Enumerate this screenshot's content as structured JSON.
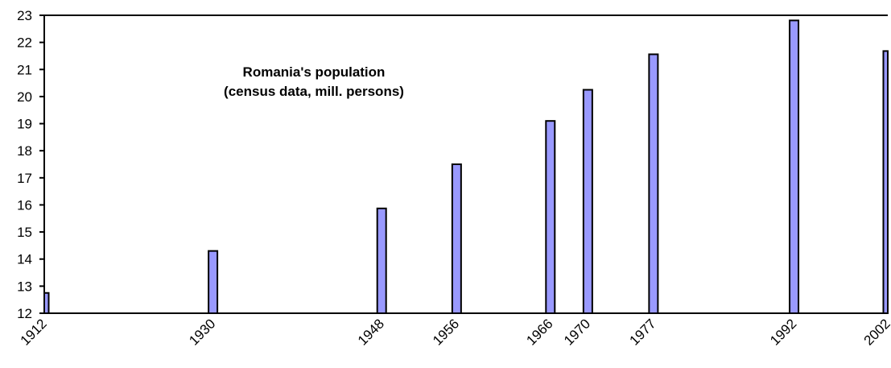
{
  "chart_data": {
    "type": "bar",
    "title": "Romania's population",
    "subtitle": "(census data, mill. persons)",
    "xlabel": "",
    "ylabel": "",
    "categories": [
      "1912",
      "1930",
      "1948",
      "1956",
      "1966",
      "1970",
      "1977",
      "1992",
      "2002"
    ],
    "values": [
      12.75,
      14.3,
      15.87,
      17.5,
      19.1,
      20.25,
      21.56,
      22.81,
      21.68
    ],
    "x_axis_type": "year",
    "xlim": [
      1912,
      2002
    ],
    "ylim": [
      12,
      23
    ],
    "y_ticks": [
      12,
      13,
      14,
      15,
      16,
      17,
      18,
      19,
      20,
      21,
      22,
      23
    ],
    "grid": false,
    "legend": "none",
    "bar_color": "#9999ff",
    "bar_outline": "#000000"
  }
}
